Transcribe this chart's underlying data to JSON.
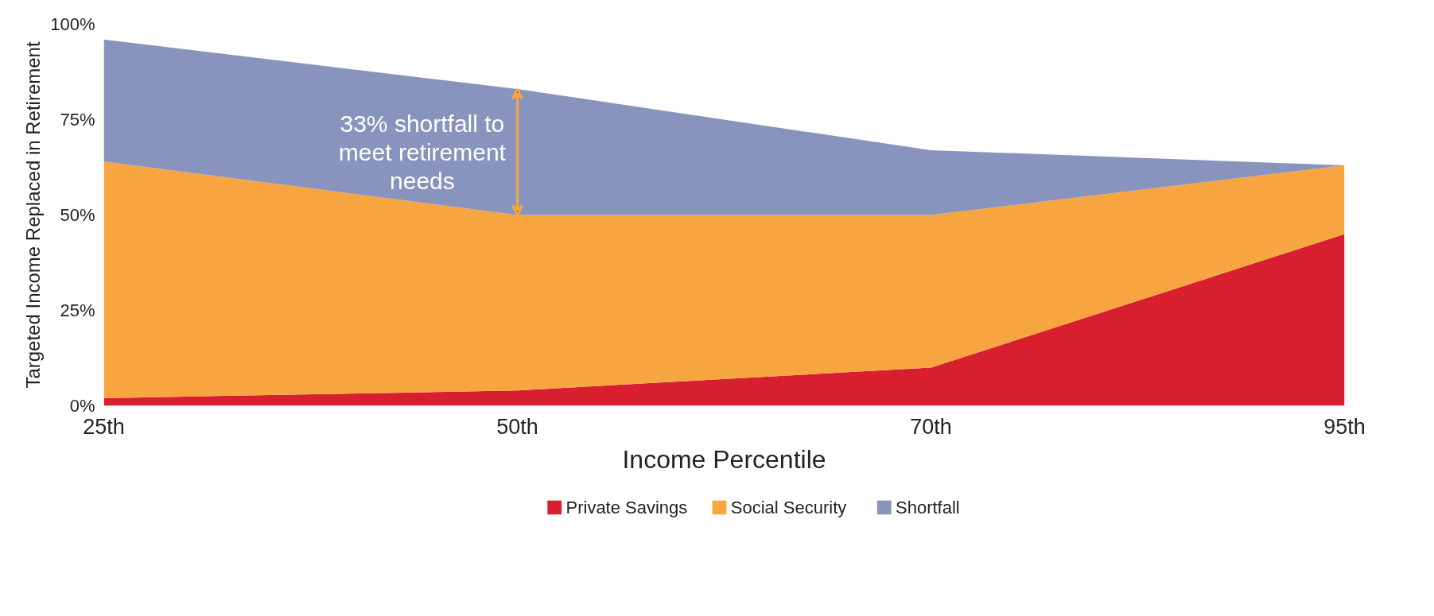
{
  "chart_data": {
    "type": "area",
    "stacked": true,
    "categories": [
      "25th",
      "50th",
      "70th",
      "95th"
    ],
    "xlabel": "Income Percentile",
    "ylabel": "Targeted Income Replaced in Retirement",
    "ylim": [
      0,
      100
    ],
    "yticks": [
      {
        "value": 0,
        "label": "0%"
      },
      {
        "value": 25,
        "label": "25%"
      },
      {
        "value": 50,
        "label": "50%"
      },
      {
        "value": 75,
        "label": "75%"
      },
      {
        "value": 100,
        "label": "100%"
      }
    ],
    "series": [
      {
        "name": "Private Savings",
        "color": "#d71f30",
        "values": [
          2,
          4,
          10,
          45
        ]
      },
      {
        "name": "Social Security",
        "color": "#f7a541",
        "values": [
          62,
          46,
          40,
          18
        ]
      },
      {
        "name": "Shortfall",
        "color": "#8894bd",
        "values": [
          32,
          33,
          17,
          0
        ]
      }
    ],
    "annotations": [
      "33% shortfall to meet retirement needs"
    ],
    "legend": "bottom",
    "grid": false
  }
}
